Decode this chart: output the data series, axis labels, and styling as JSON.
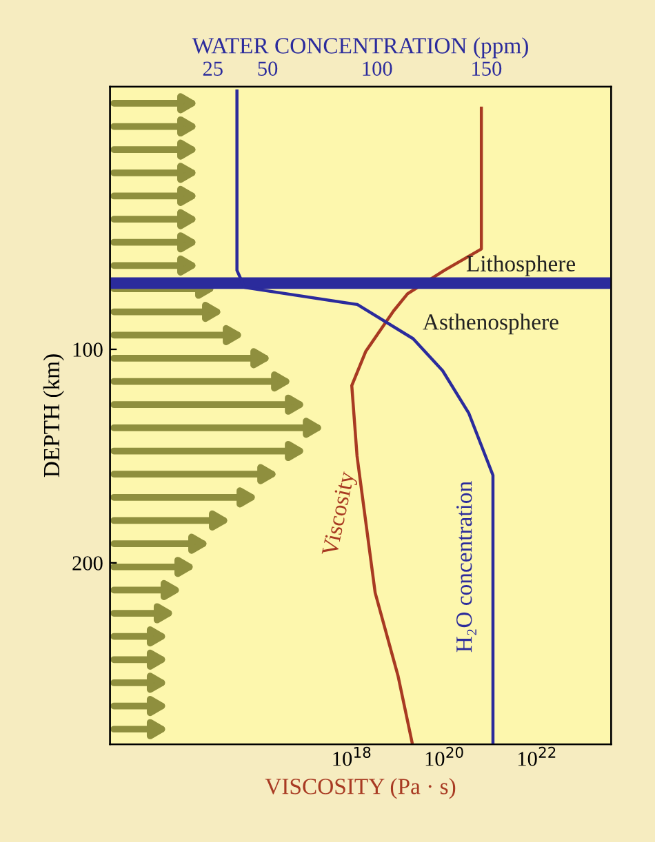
{
  "chart_data": {
    "type": "line",
    "xlabel": "VISCOSITY (Pa · s)",
    "x2label": "WATER CONCENTRATION (ppm)",
    "ylabel": "DEPTH (km)",
    "log": "x",
    "xlim": [
      6000000000000.0,
      4e+23
    ],
    "xticks": [
      {
        "value": 1e+18,
        "label": "10$^{18}$"
      },
      {
        "value": 1e+20,
        "label": "10$^{20}$"
      },
      {
        "value": 1e+22,
        "label": "10$^{22}$"
      }
    ],
    "x2lim": [
      -22,
      207
    ],
    "x2ticks": [
      25,
      50,
      100,
      150
    ],
    "ylim": [
      285,
      -23
    ],
    "yticks": [
      100,
      200
    ],
    "series": [
      {
        "name": "Viscosity",
        "color": "#a83a22",
        "x": [
          6.3e+20,
          6.3e+20,
          1e+20,
          1.6e+19,
          8e+18,
          2e+18,
          1e+18,
          1.3e+18,
          3.2e+18,
          1e+19,
          2e+19
        ],
        "values": [
          -13,
          53,
          63,
          74,
          82,
          101,
          117,
          150,
          214,
          253,
          284
        ]
      },
      {
        "name": "H₂O concentration",
        "color": "#2b2b9c",
        "axis": "x2",
        "x": [
          36,
          36,
          39.5,
          91,
          116.5,
          130,
          142,
          153,
          153
        ],
        "values": [
          -21,
          63,
          71,
          79,
          95,
          110,
          130,
          159,
          285
        ]
      }
    ],
    "ref_lines": [
      {
        "axis": "y",
        "value": 69,
        "color": "#2b2b9c"
      }
    ],
    "annotations": [
      "Lithosphere",
      "Asthenosphere"
    ],
    "grid": false,
    "legend": false
  }
}
